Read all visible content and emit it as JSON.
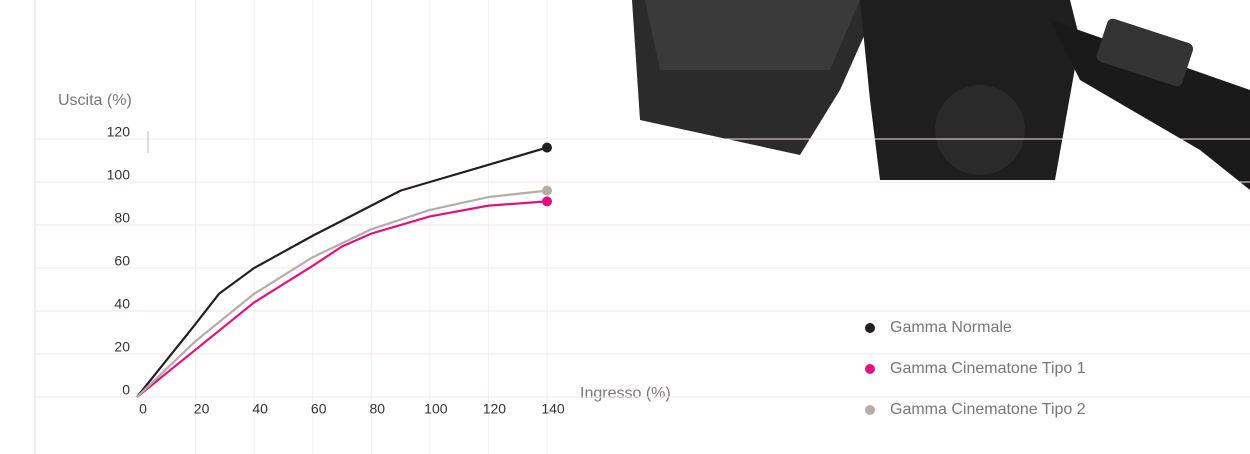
{
  "chart_data": {
    "type": "line",
    "ylabel": "Uscita (%)",
    "xlabel": "Ingresso (%)",
    "xlim": [
      0,
      140
    ],
    "xticks": [
      0,
      20,
      40,
      60,
      80,
      100,
      120,
      140
    ],
    "ylim": [
      0,
      120
    ],
    "yticks": [
      0,
      20,
      40,
      60,
      80,
      100,
      120
    ],
    "grid": true,
    "legend": "lower right",
    "series": [
      {
        "name": "Gamma Normale",
        "color": "#231f20",
        "x": [
          0,
          20,
          28,
          40,
          60,
          80,
          90,
          100,
          120,
          140
        ],
        "values": [
          0,
          34,
          48,
          60,
          75,
          89,
          96,
          100,
          108,
          116
        ]
      },
      {
        "name": "Gamma Cinematone Tipo 1",
        "color": "#e0127f",
        "x": [
          0,
          20,
          40,
          60,
          70,
          80,
          100,
          120,
          140
        ],
        "values": [
          0,
          22,
          44,
          61,
          70,
          76,
          84,
          89,
          91
        ]
      },
      {
        "name": "Gamma Cinematone Tipo 2",
        "color": "#b5ada8",
        "x": [
          0,
          20,
          40,
          60,
          80,
          100,
          120,
          140
        ],
        "values": [
          0,
          26,
          48,
          65,
          78,
          87,
          93,
          96
        ]
      }
    ]
  }
}
